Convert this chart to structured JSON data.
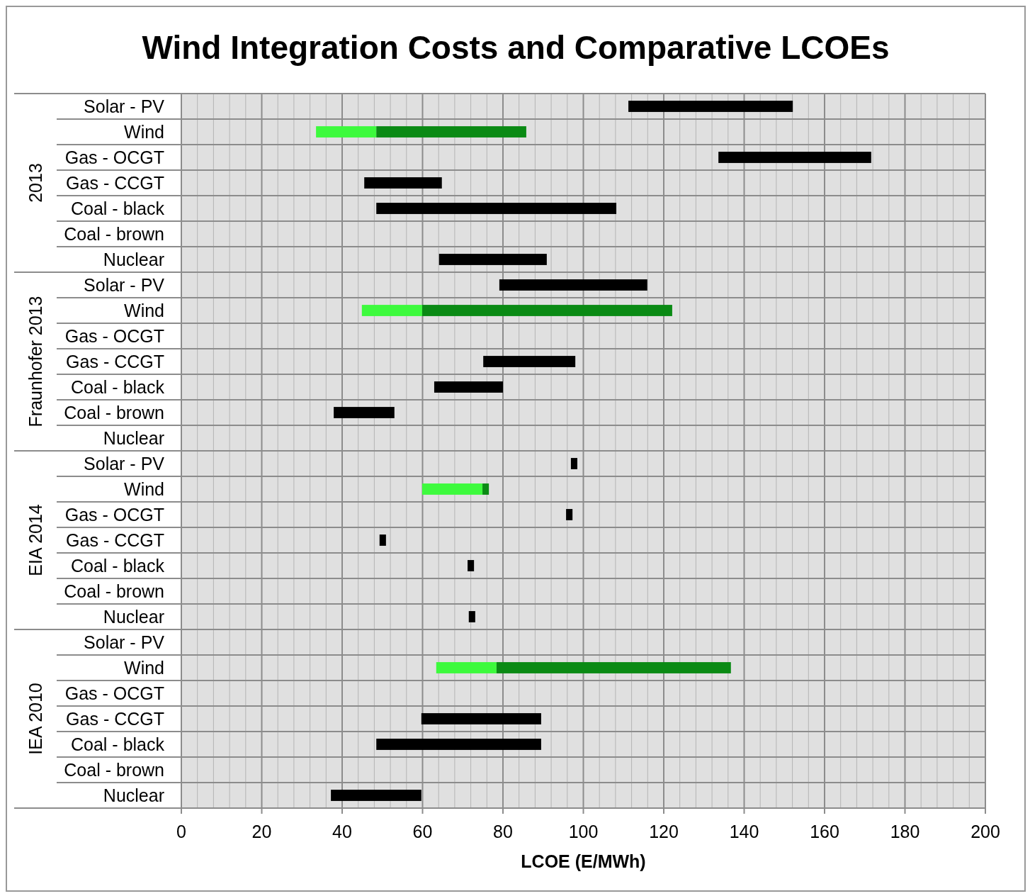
{
  "chart_data": {
    "type": "bar",
    "title": "Wind Integration Costs and Comparative LCOEs",
    "xlabel": "LCOE (E/MWh)",
    "orientation": "horizontal",
    "categories": [
      "Solar - PV",
      "Wind",
      "Gas - OCGT",
      "Gas - CCGT",
      "Coal - black",
      "Coal - brown",
      "Nuclear",
      "Solar - PV",
      "Wind",
      "Gas - OCGT",
      "Gas - CCGT",
      "Coal - black",
      "Coal - brown",
      "Nuclear",
      "Solar - PV",
      "Wind",
      "Gas - OCGT",
      "Gas - CCGT",
      "Coal - black",
      "Coal - brown",
      "Nuclear",
      "Solar - PV",
      "Wind",
      "Gas - OCGT",
      "Gas - CCGT",
      "Coal - black",
      "Coal - brown",
      "Nuclear"
    ],
    "series": [
      {
        "base": [
          111.2,
          33.5,
          133.6,
          45.5,
          48.5,
          null,
          64.1,
          79.1,
          44.9,
          null,
          75.1,
          62.9,
          37.9,
          null,
          96.9,
          59.9,
          95.7,
          49.3,
          71.2,
          null,
          71.5,
          null,
          63.4,
          null,
          59.7,
          48.5,
          null,
          37.2
        ],
        "values": [
          40.9,
          15.0,
          38.0,
          19.3,
          59.7,
          null,
          26.8,
          36.8,
          15.0,
          null,
          22.9,
          17.1,
          15.1,
          null,
          1.6,
          15.0,
          1.6,
          1.6,
          1.6,
          null,
          1.6,
          null,
          15.0,
          null,
          29.8,
          41.0,
          null,
          22.5
        ],
        "colors": [
          "#000000",
          "#3dfa3d",
          "#000000",
          "#000000",
          "#000000",
          "#000000",
          "#000000",
          "#000000",
          "#3dfa3d",
          "#000000",
          "#000000",
          "#000000",
          "#000000",
          "#000000",
          "#000000",
          "#3dfa3d",
          "#000000",
          "#000000",
          "#000000",
          "#000000",
          "#000000",
          "#000000",
          "#3dfa3d",
          "#000000",
          "#000000",
          "#000000",
          "#000000",
          "#000000"
        ]
      },
      {
        "color": "#0a8a14",
        "base": [
          null,
          48.5,
          null,
          null,
          null,
          null,
          null,
          null,
          59.9,
          null,
          null,
          null,
          null,
          null,
          null,
          74.9,
          null,
          null,
          null,
          null,
          null,
          null,
          78.4,
          null,
          null,
          null,
          null,
          null
        ],
        "values": [
          null,
          37.3,
          null,
          null,
          null,
          null,
          null,
          null,
          62.2,
          null,
          null,
          null,
          null,
          null,
          null,
          1.6,
          null,
          null,
          null,
          null,
          null,
          null,
          58.3,
          null,
          null,
          null,
          null,
          null
        ]
      }
    ],
    "annotations": [
      "2013",
      "Fraunhofer 2013",
      "EIA 2014",
      "IEA 2010"
    ],
    "xlim": [
      0,
      200
    ],
    "xticks": [
      0,
      {
        "value": 4,
        "label": null
      },
      {
        "value": 8,
        "label": null
      },
      {
        "value": 12,
        "label": null
      },
      {
        "value": 16,
        "label": null
      },
      20,
      {
        "value": 24,
        "label": null
      },
      {
        "value": 28,
        "label": null
      },
      {
        "value": 32,
        "label": null
      },
      {
        "value": 36,
        "label": null
      },
      40,
      {
        "value": 44,
        "label": null
      },
      {
        "value": 48,
        "label": null
      },
      {
        "value": 52,
        "label": null
      },
      {
        "value": 56,
        "label": null
      },
      60,
      {
        "value": 64,
        "label": null
      },
      {
        "value": 68,
        "label": null
      },
      {
        "value": 72,
        "label": null
      },
      {
        "value": 76,
        "label": null
      },
      80,
      {
        "value": 84,
        "label": null
      },
      {
        "value": 88,
        "label": null
      },
      {
        "value": 92,
        "label": null
      },
      {
        "value": 96,
        "label": null
      },
      100,
      {
        "value": 104,
        "label": null
      },
      {
        "value": 108,
        "label": null
      },
      {
        "value": 112,
        "label": null
      },
      {
        "value": 116,
        "label": null
      },
      120,
      {
        "value": 124,
        "label": null
      },
      {
        "value": 128,
        "label": null
      },
      {
        "value": 132,
        "label": null
      },
      {
        "value": 136,
        "label": null
      },
      140,
      {
        "value": 144,
        "label": null
      },
      {
        "value": 148,
        "label": null
      },
      {
        "value": 152,
        "label": null
      },
      {
        "value": 156,
        "label": null
      },
      160,
      {
        "value": 164,
        "label": null
      },
      {
        "value": 168,
        "label": null
      },
      {
        "value": 172,
        "label": null
      },
      {
        "value": 176,
        "label": null
      },
      180,
      {
        "value": 184,
        "label": null
      },
      {
        "value": 188,
        "label": null
      },
      {
        "value": 192,
        "label": null
      },
      {
        "value": 196,
        "label": null
      },
      200
    ],
    "grid": "x"
  }
}
